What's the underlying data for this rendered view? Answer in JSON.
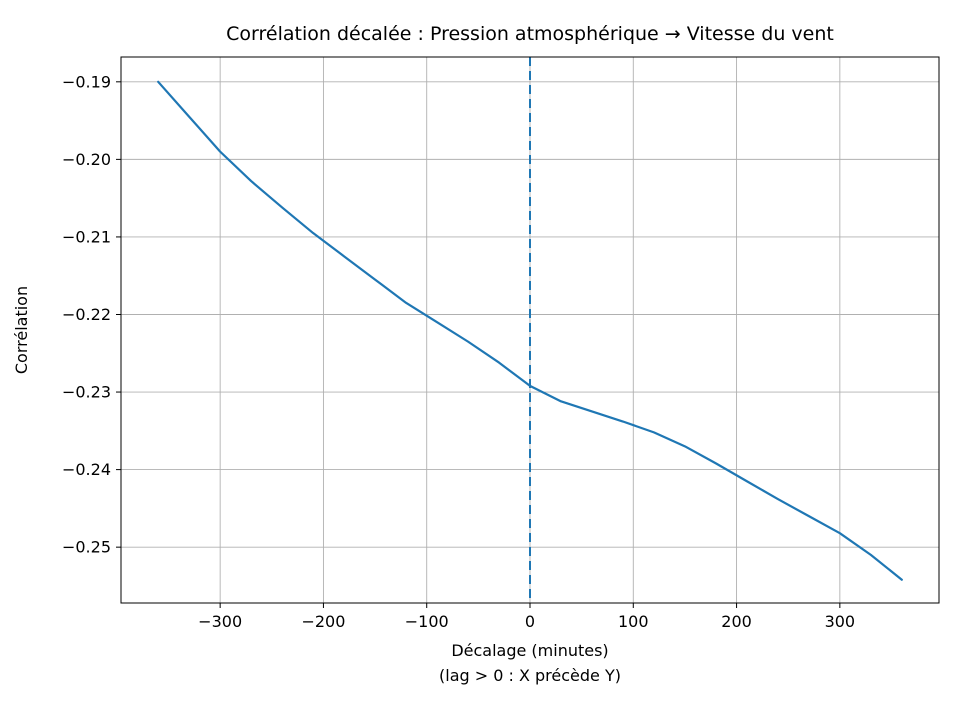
{
  "chart_data": {
    "type": "line",
    "title": "Corrélation décalée : Pression atmosphérique → Vitesse du vent",
    "xlabel_line1": "Décalage (minutes)",
    "xlabel_line2": "(lag > 0 : X précède Y)",
    "ylabel": "Corrélation",
    "xlim": [
      -396,
      396
    ],
    "ylim": [
      -0.2572,
      -0.1868
    ],
    "grid": true,
    "line_color": "#1f77b4",
    "vline": {
      "x": 0,
      "style": "dashed",
      "color": "#1f77b4"
    },
    "xticks": [
      {
        "value": -300,
        "label": "−300"
      },
      {
        "value": -200,
        "label": "−200"
      },
      {
        "value": -100,
        "label": "−100"
      },
      {
        "value": 0,
        "label": "0"
      },
      {
        "value": 100,
        "label": "100"
      },
      {
        "value": 200,
        "label": "200"
      },
      {
        "value": 300,
        "label": "300"
      }
    ],
    "yticks": [
      {
        "value": -0.19,
        "label": "−0.19"
      },
      {
        "value": -0.2,
        "label": "−0.20"
      },
      {
        "value": -0.21,
        "label": "−0.21"
      },
      {
        "value": -0.22,
        "label": "−0.22"
      },
      {
        "value": -0.23,
        "label": "−0.23"
      },
      {
        "value": -0.24,
        "label": "−0.24"
      },
      {
        "value": -0.25,
        "label": "−0.25"
      }
    ],
    "series": [
      {
        "name": "cross-correlation",
        "x": [
          -360,
          -330,
          -300,
          -270,
          -240,
          -210,
          -180,
          -150,
          -120,
          -90,
          -60,
          -30,
          0,
          30,
          60,
          90,
          120,
          150,
          180,
          210,
          240,
          270,
          300,
          330,
          360
        ],
        "y": [
          -0.19,
          -0.1945,
          -0.199,
          -0.2028,
          -0.2062,
          -0.2095,
          -0.2125,
          -0.2155,
          -0.2185,
          -0.221,
          -0.2235,
          -0.2262,
          -0.2292,
          -0.2312,
          -0.2325,
          -0.2338,
          -0.2352,
          -0.237,
          -0.2392,
          -0.2415,
          -0.2438,
          -0.246,
          -0.2482,
          -0.251,
          -0.2542
        ]
      }
    ]
  }
}
